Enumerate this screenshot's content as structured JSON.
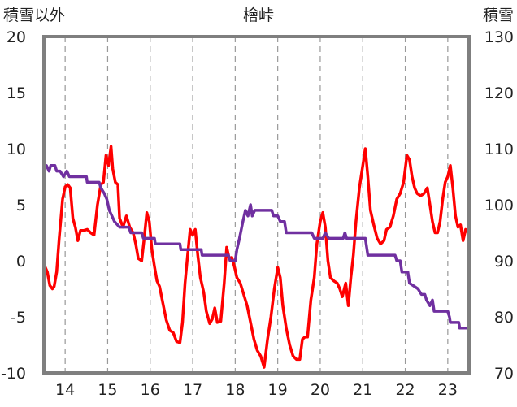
{
  "chart_data": {
    "type": "line",
    "title": "檜峠",
    "left_axis_label": "積雪以外",
    "right_axis_label": "積雪",
    "x_tick_labels": [
      "14",
      "15",
      "16",
      "17",
      "18",
      "19",
      "20",
      "21",
      "22",
      "23"
    ],
    "x_ticks": [
      14,
      15,
      16,
      17,
      18,
      19,
      20,
      21,
      22,
      23
    ],
    "xlim": [
      13.5,
      23.5
    ],
    "ylim_left": [
      -10,
      20
    ],
    "y_left_ticks": [
      -10,
      -5,
      0,
      5,
      10,
      15,
      20
    ],
    "ylim_right": [
      70,
      130
    ],
    "y_right_ticks": [
      70,
      80,
      90,
      100,
      110,
      120,
      130
    ],
    "grid": {
      "vertical_dashed": true,
      "horizontal": false
    },
    "colors": {
      "series_1": "#ff0000",
      "series_2": "#7030a0",
      "frame": "#7f7f7f",
      "grid": "#999999"
    },
    "series": [
      {
        "axis": "left",
        "color": "#ff0000",
        "points": [
          [
            13.5,
            -0.3
          ],
          [
            13.58,
            -1.0
          ],
          [
            13.64,
            -2.2
          ],
          [
            13.7,
            -2.5
          ],
          [
            13.74,
            -2.3
          ],
          [
            13.8,
            -1.0
          ],
          [
            13.86,
            2.0
          ],
          [
            13.94,
            5.5
          ],
          [
            14.0,
            6.6
          ],
          [
            14.06,
            6.8
          ],
          [
            14.12,
            6.5
          ],
          [
            14.18,
            3.8
          ],
          [
            14.24,
            3.0
          ],
          [
            14.3,
            1.8
          ],
          [
            14.36,
            2.7
          ],
          [
            14.44,
            2.7
          ],
          [
            14.52,
            2.8
          ],
          [
            14.6,
            2.5
          ],
          [
            14.68,
            2.3
          ],
          [
            14.76,
            5.0
          ],
          [
            14.84,
            6.8
          ],
          [
            14.9,
            7.0
          ],
          [
            14.96,
            9.4
          ],
          [
            15.02,
            8.5
          ],
          [
            15.08,
            10.2
          ],
          [
            15.12,
            8.2
          ],
          [
            15.18,
            7.0
          ],
          [
            15.24,
            6.8
          ],
          [
            15.28,
            3.8
          ],
          [
            15.36,
            3.0
          ],
          [
            15.44,
            4.0
          ],
          [
            15.52,
            3.0
          ],
          [
            15.6,
            2.5
          ],
          [
            15.66,
            1.5
          ],
          [
            15.72,
            0.2
          ],
          [
            15.8,
            0.0
          ],
          [
            15.86,
            2.0
          ],
          [
            15.92,
            4.3
          ],
          [
            15.98,
            3.5
          ],
          [
            16.04,
            1.0
          ],
          [
            16.1,
            -0.5
          ],
          [
            16.16,
            -1.8
          ],
          [
            16.22,
            -2.3
          ],
          [
            16.3,
            -3.8
          ],
          [
            16.38,
            -5.3
          ],
          [
            16.46,
            -6.2
          ],
          [
            16.54,
            -6.4
          ],
          [
            16.62,
            -7.2
          ],
          [
            16.7,
            -7.3
          ],
          [
            16.76,
            -5.5
          ],
          [
            16.82,
            -2.0
          ],
          [
            16.88,
            0.5
          ],
          [
            16.94,
            2.8
          ],
          [
            17.0,
            2.3
          ],
          [
            17.06,
            2.8
          ],
          [
            17.12,
            0.5
          ],
          [
            17.18,
            -1.5
          ],
          [
            17.26,
            -2.8
          ],
          [
            17.32,
            -4.5
          ],
          [
            17.4,
            -5.6
          ],
          [
            17.46,
            -5.2
          ],
          [
            17.52,
            -4.2
          ],
          [
            17.58,
            -5.5
          ],
          [
            17.66,
            -5.4
          ],
          [
            17.74,
            -2.0
          ],
          [
            17.8,
            1.2
          ],
          [
            17.86,
            0.2
          ],
          [
            17.92,
            0.3
          ],
          [
            17.98,
            -0.5
          ],
          [
            18.04,
            -1.5
          ],
          [
            18.12,
            -2.0
          ],
          [
            18.2,
            -3.0
          ],
          [
            18.28,
            -4.0
          ],
          [
            18.36,
            -5.5
          ],
          [
            18.44,
            -7.0
          ],
          [
            18.52,
            -8.0
          ],
          [
            18.6,
            -8.5
          ],
          [
            18.68,
            -9.5
          ],
          [
            18.76,
            -7.0
          ],
          [
            18.84,
            -5.0
          ],
          [
            18.92,
            -2.5
          ],
          [
            19.0,
            -0.6
          ],
          [
            19.06,
            -1.5
          ],
          [
            19.12,
            -4.0
          ],
          [
            19.2,
            -6.0
          ],
          [
            19.28,
            -7.5
          ],
          [
            19.36,
            -8.5
          ],
          [
            19.44,
            -8.8
          ],
          [
            19.52,
            -8.8
          ],
          [
            19.58,
            -7.0
          ],
          [
            19.64,
            -6.8
          ],
          [
            19.7,
            -6.8
          ],
          [
            19.78,
            -3.5
          ],
          [
            19.86,
            -1.5
          ],
          [
            19.92,
            1.5
          ],
          [
            20.0,
            3.5
          ],
          [
            20.06,
            4.3
          ],
          [
            20.12,
            3.0
          ],
          [
            20.18,
            0.0
          ],
          [
            20.24,
            -1.5
          ],
          [
            20.32,
            -1.8
          ],
          [
            20.4,
            -2.0
          ],
          [
            20.46,
            -2.5
          ],
          [
            20.52,
            -3.2
          ],
          [
            20.6,
            -2.0
          ],
          [
            20.66,
            -4.0
          ],
          [
            20.72,
            -1.5
          ],
          [
            20.78,
            0.5
          ],
          [
            20.84,
            3.5
          ],
          [
            20.92,
            6.5
          ],
          [
            21.0,
            8.5
          ],
          [
            21.06,
            10.0
          ],
          [
            21.12,
            7.5
          ],
          [
            21.18,
            4.5
          ],
          [
            21.26,
            3.2
          ],
          [
            21.34,
            2.0
          ],
          [
            21.42,
            1.5
          ],
          [
            21.5,
            1.8
          ],
          [
            21.56,
            2.8
          ],
          [
            21.64,
            3.0
          ],
          [
            21.72,
            4.0
          ],
          [
            21.8,
            5.5
          ],
          [
            21.88,
            6.0
          ],
          [
            21.96,
            7.0
          ],
          [
            22.04,
            9.4
          ],
          [
            22.1,
            9.0
          ],
          [
            22.16,
            7.5
          ],
          [
            22.22,
            6.5
          ],
          [
            22.28,
            6.0
          ],
          [
            22.36,
            5.8
          ],
          [
            22.44,
            6.0
          ],
          [
            22.52,
            6.5
          ],
          [
            22.58,
            5.0
          ],
          [
            22.64,
            3.5
          ],
          [
            22.7,
            2.5
          ],
          [
            22.76,
            2.5
          ],
          [
            22.82,
            3.5
          ],
          [
            22.88,
            5.5
          ],
          [
            22.94,
            7.0
          ],
          [
            23.0,
            7.5
          ],
          [
            23.06,
            8.5
          ],
          [
            23.12,
            6.5
          ],
          [
            23.18,
            4.0
          ],
          [
            23.24,
            3.0
          ],
          [
            23.3,
            3.2
          ],
          [
            23.36,
            1.8
          ],
          [
            23.42,
            2.8
          ],
          [
            23.48,
            2.5
          ]
        ]
      },
      {
        "axis": "right",
        "color": "#7030a0",
        "points": [
          [
            13.5,
            107
          ],
          [
            13.56,
            107
          ],
          [
            13.62,
            106
          ],
          [
            13.66,
            107
          ],
          [
            13.76,
            107
          ],
          [
            13.8,
            106
          ],
          [
            13.88,
            106
          ],
          [
            13.96,
            105
          ],
          [
            14.04,
            106
          ],
          [
            14.1,
            105
          ],
          [
            14.3,
            105
          ],
          [
            14.5,
            105
          ],
          [
            14.52,
            104
          ],
          [
            14.8,
            104
          ],
          [
            14.84,
            103
          ],
          [
            14.92,
            102
          ],
          [
            14.98,
            101
          ],
          [
            15.04,
            99
          ],
          [
            15.1,
            98
          ],
          [
            15.16,
            97
          ],
          [
            15.28,
            96
          ],
          [
            15.5,
            96
          ],
          [
            15.54,
            95
          ],
          [
            15.8,
            95
          ],
          [
            15.84,
            94
          ],
          [
            16.1,
            94
          ],
          [
            16.12,
            93
          ],
          [
            16.7,
            93
          ],
          [
            16.72,
            92
          ],
          [
            17.2,
            92
          ],
          [
            17.22,
            91
          ],
          [
            17.84,
            91
          ],
          [
            17.88,
            90
          ],
          [
            18.0,
            90
          ],
          [
            18.04,
            92
          ],
          [
            18.1,
            94
          ],
          [
            18.18,
            97
          ],
          [
            18.24,
            99
          ],
          [
            18.3,
            98
          ],
          [
            18.36,
            100
          ],
          [
            18.4,
            98
          ],
          [
            18.46,
            99
          ],
          [
            18.86,
            99
          ],
          [
            18.9,
            98
          ],
          [
            19.0,
            98
          ],
          [
            19.06,
            97
          ],
          [
            19.16,
            97
          ],
          [
            19.2,
            95
          ],
          [
            19.8,
            95
          ],
          [
            19.86,
            94
          ],
          [
            20.06,
            94
          ],
          [
            20.12,
            95
          ],
          [
            20.2,
            94
          ],
          [
            20.54,
            94
          ],
          [
            20.58,
            95
          ],
          [
            20.62,
            94
          ],
          [
            21.06,
            94
          ],
          [
            21.12,
            91
          ],
          [
            21.76,
            91
          ],
          [
            21.8,
            90
          ],
          [
            21.88,
            90
          ],
          [
            21.92,
            88
          ],
          [
            22.06,
            88
          ],
          [
            22.1,
            86
          ],
          [
            22.3,
            85
          ],
          [
            22.38,
            84
          ],
          [
            22.46,
            84
          ],
          [
            22.5,
            83
          ],
          [
            22.58,
            82
          ],
          [
            22.64,
            83
          ],
          [
            22.68,
            81
          ],
          [
            23.0,
            81
          ],
          [
            23.04,
            80
          ],
          [
            23.06,
            79
          ],
          [
            23.26,
            79
          ],
          [
            23.28,
            78
          ],
          [
            23.48,
            78
          ]
        ]
      }
    ]
  }
}
